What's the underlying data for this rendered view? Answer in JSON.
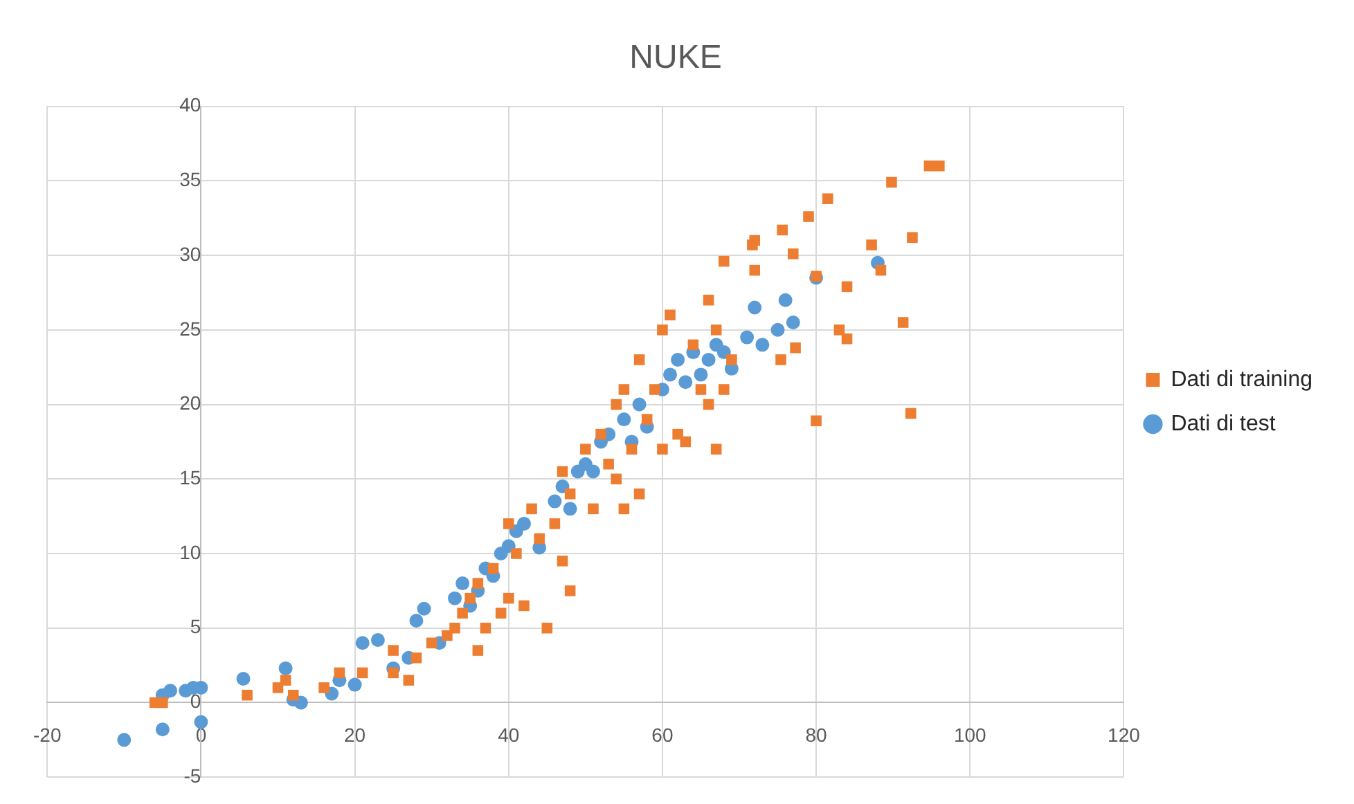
{
  "chart_data": {
    "type": "scatter",
    "title": "NUKE",
    "xlim": [
      -20,
      120
    ],
    "xticks": [
      -20,
      0,
      20,
      40,
      60,
      80,
      100,
      120
    ],
    "ylim": [
      -5,
      40
    ],
    "yticks": [
      -5,
      0,
      5,
      10,
      15,
      20,
      25,
      30,
      35,
      40
    ],
    "grid": true,
    "legend": "right",
    "series": [
      {
        "name": "Dati di training",
        "color": "#ed7d31",
        "marker": "square",
        "x": [
          -6,
          -5,
          6,
          10,
          11,
          12,
          16,
          18,
          21,
          25,
          25,
          27,
          28,
          30,
          32,
          33,
          34,
          35,
          36,
          36,
          37,
          38,
          39,
          40,
          40,
          41,
          42,
          43,
          44,
          45,
          46,
          47,
          47,
          48,
          48,
          50,
          51,
          52,
          53,
          54,
          54,
          55,
          55,
          56,
          57,
          57,
          58,
          59,
          60,
          60,
          61,
          62,
          63,
          64,
          65,
          66,
          66,
          67,
          67,
          68,
          68,
          69,
          71.7,
          72,
          72,
          75.4,
          75.6,
          77,
          77.3,
          79,
          80,
          80,
          81.5,
          83,
          84,
          84,
          87.2,
          88.4,
          89.8,
          91.3,
          92.3,
          92.5,
          94.7,
          96
        ],
        "values": [
          0,
          0,
          0.5,
          1,
          1.5,
          0.5,
          1,
          2,
          2,
          2,
          3.5,
          1.5,
          3,
          4,
          4.5,
          5,
          6,
          7,
          3.5,
          8,
          5,
          9,
          6,
          7,
          12,
          10,
          6.5,
          13,
          11,
          5,
          12,
          9.5,
          15.5,
          7.5,
          14,
          17,
          13,
          18,
          16,
          20,
          15,
          21,
          13,
          17,
          23,
          14,
          19,
          21,
          25,
          17,
          26,
          18,
          17.5,
          24,
          21,
          27,
          20,
          25,
          17,
          29.6,
          21,
          23,
          30.7,
          29,
          31,
          23,
          31.7,
          30.1,
          23.8,
          32.6,
          28.6,
          18.9,
          33.8,
          25,
          27.9,
          24.4,
          30.7,
          29,
          34.9,
          25.5,
          19.4,
          31.2,
          36,
          36
        ]
      },
      {
        "name": "Dati di test",
        "color": "#5b9bd5",
        "marker": "circle",
        "x": [
          -10,
          -5,
          -5,
          -4,
          -2,
          -1,
          0,
          0,
          5.5,
          11,
          12,
          13,
          17,
          18,
          20,
          21,
          23,
          25,
          27,
          28,
          29,
          31,
          33,
          34,
          35,
          36,
          37,
          38,
          39,
          40,
          41,
          42,
          44,
          46,
          47,
          48,
          49,
          50,
          51,
          52,
          53,
          55,
          56,
          57,
          58,
          60,
          61,
          62,
          63,
          64,
          65,
          66,
          67,
          68,
          69,
          71,
          72,
          73,
          75,
          76,
          77,
          80,
          88
        ],
        "values": [
          -2.5,
          -1.8,
          0.5,
          0.8,
          0.8,
          1,
          1,
          -1.3,
          1.6,
          2.3,
          0.2,
          0,
          0.6,
          1.5,
          1.2,
          4,
          4.2,
          2.3,
          3,
          5.5,
          6.3,
          4,
          7,
          8,
          6.5,
          7.5,
          9,
          8.5,
          10,
          10.5,
          11.5,
          12,
          10.4,
          13.5,
          14.5,
          13,
          15.5,
          16,
          15.5,
          17.5,
          18,
          19,
          17.5,
          20,
          18.5,
          21,
          22,
          23,
          21.5,
          23.5,
          22,
          23,
          24,
          23.5,
          22.4,
          24.5,
          26.5,
          24,
          25,
          27,
          25.5,
          28.5,
          29.5
        ]
      }
    ]
  }
}
